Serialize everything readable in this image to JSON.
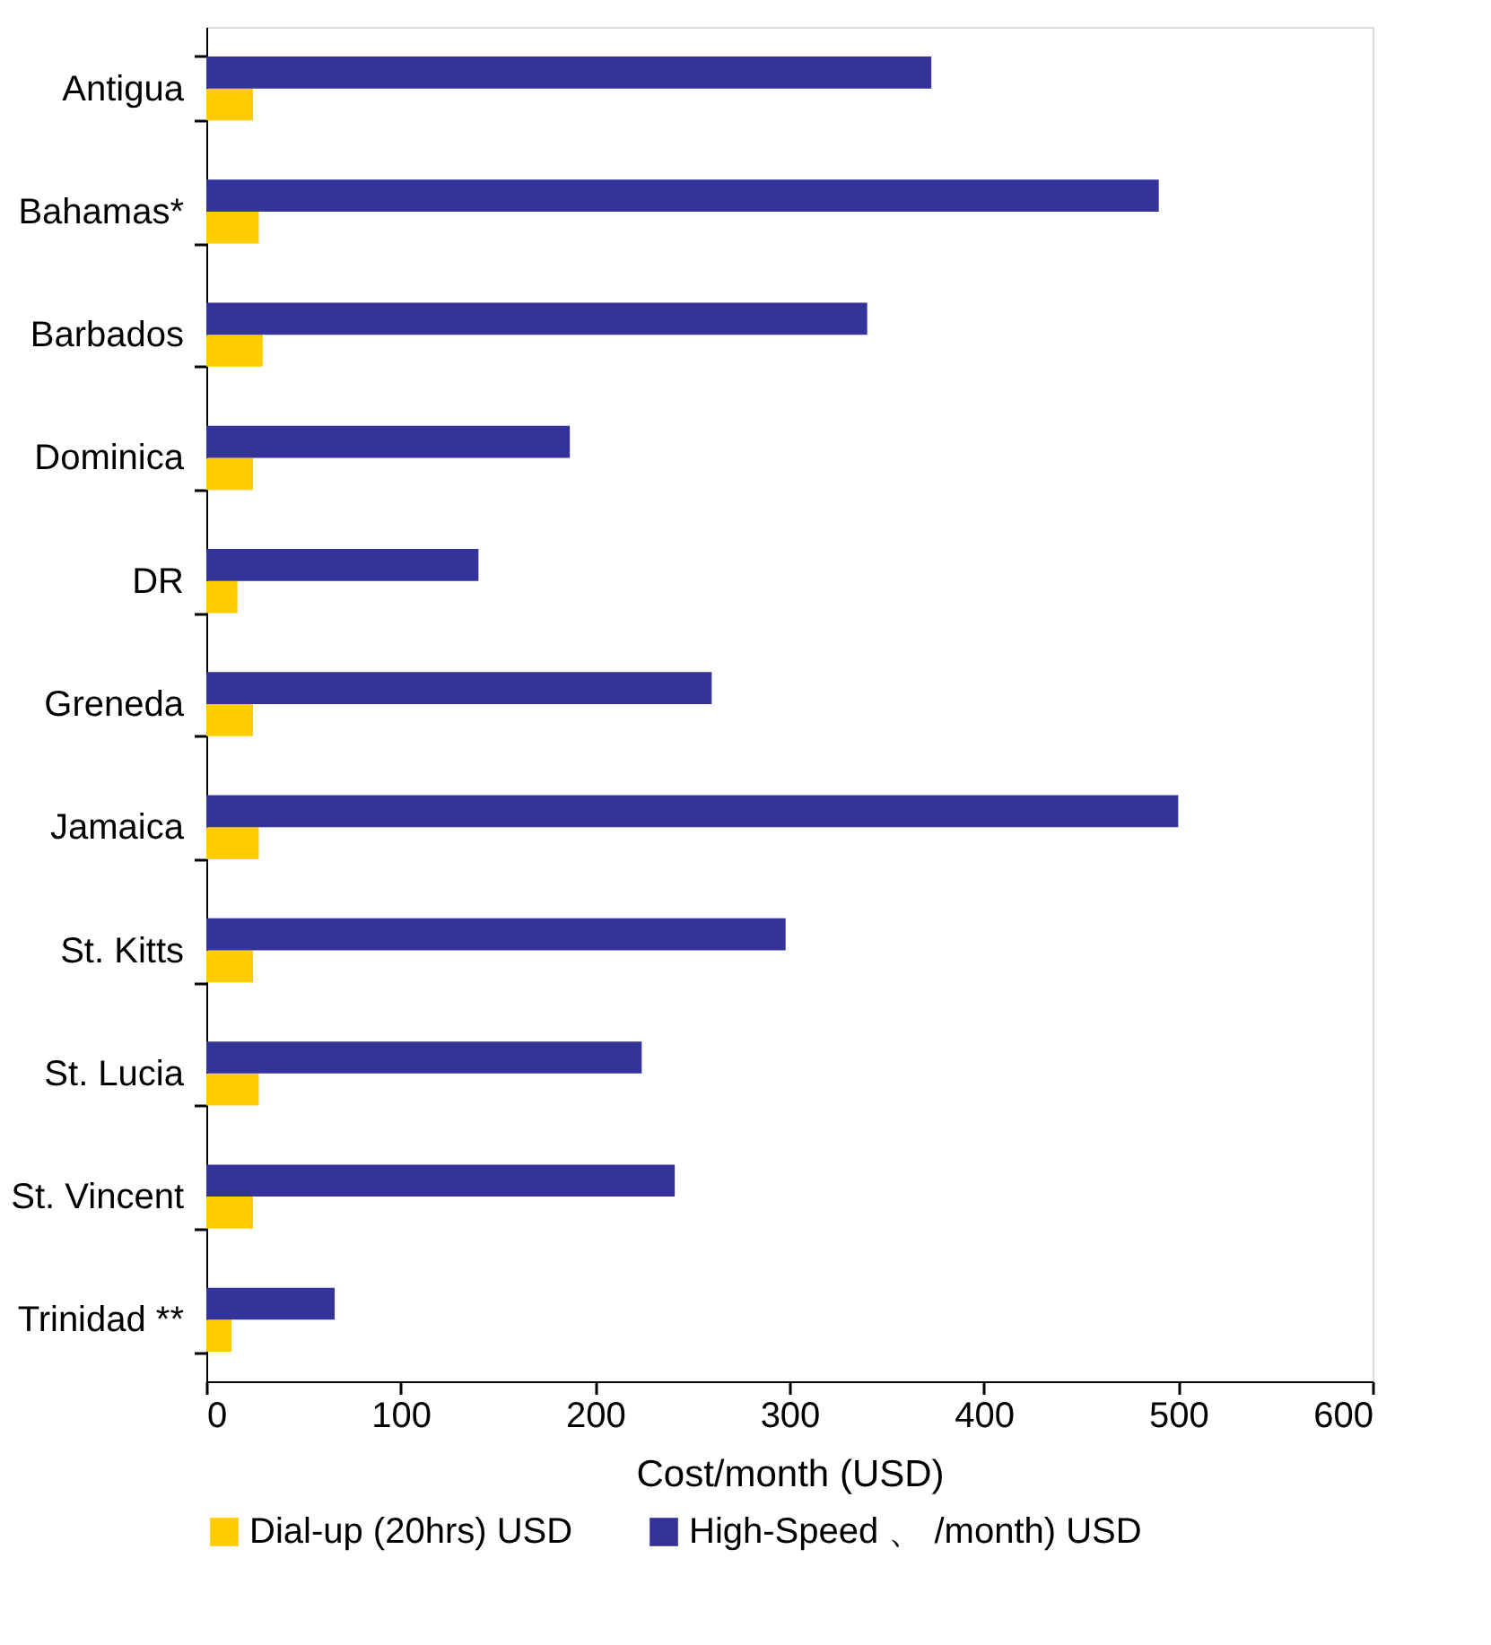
{
  "chart_data": {
    "type": "bar",
    "orientation": "horizontal",
    "xlabel": "Cost/month (USD)",
    "categories": [
      "Antigua",
      "Bahamas*",
      "Barbados",
      "Dominica",
      "DR",
      "Greneda",
      "Jamaica",
      "St. Kitts",
      "St. Lucia",
      "St. Vincent",
      "Trinidad **"
    ],
    "series": [
      {
        "name": "Dial-up (20hrs) USD",
        "color": "#ffcc00",
        "values": [
          24,
          27,
          29,
          24,
          16,
          24,
          27,
          24,
          27,
          24,
          13
        ]
      },
      {
        "name": "High-Speed 、 /month) USD",
        "color": "#333399",
        "values": [
          373,
          490,
          340,
          187,
          140,
          260,
          500,
          298,
          224,
          241,
          66
        ]
      }
    ],
    "xlim": [
      0,
      600
    ],
    "xticks": [
      0,
      100,
      200,
      300,
      400,
      500,
      600
    ],
    "grid": false,
    "legend": "bottom"
  }
}
